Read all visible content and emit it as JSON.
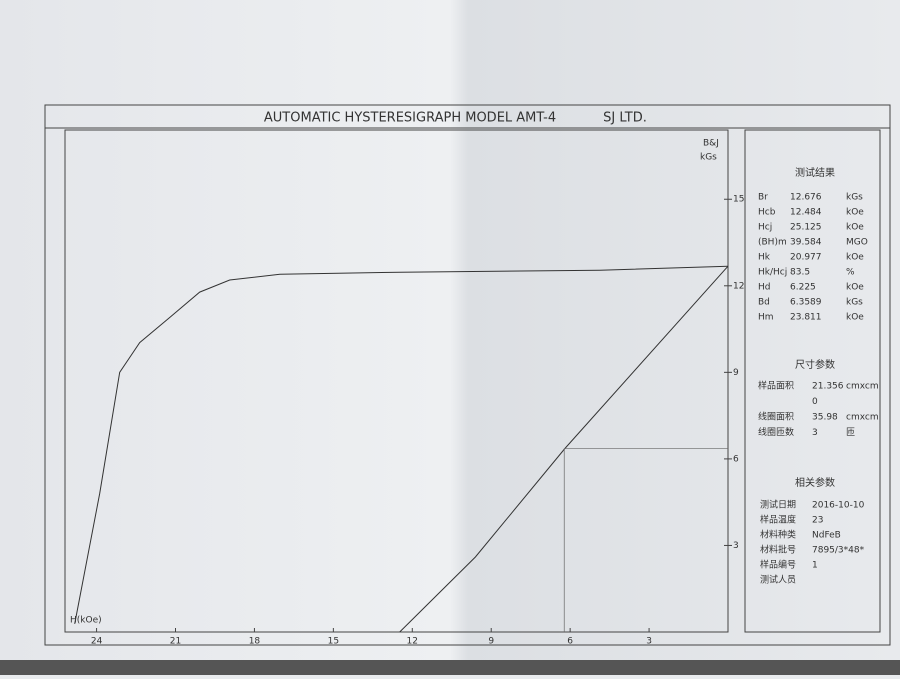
{
  "header": {
    "title": "AUTOMATIC HYSTERESIGRAPH MODEL AMT-4",
    "company": "SJ LTD."
  },
  "chart_data": {
    "type": "line",
    "x_label": "H(kOe)",
    "y_label": "B&J",
    "y_unit": "kGs",
    "xlim": [
      25.2,
      0
    ],
    "xticks": [
      24,
      21,
      18,
      15,
      12,
      9,
      6,
      3
    ],
    "ylim": [
      0,
      17.4
    ],
    "yticks": [
      15,
      12,
      9,
      6,
      3
    ],
    "series": [
      {
        "color": "#333333",
        "x": [
          24.83,
          23.88,
          23.12,
          22.36,
          21.22,
          20.08,
          18.94,
          17.03,
          12.47,
          4.87,
          0
        ],
        "values": [
          0.28,
          4.8,
          9.0,
          10.03,
          10.9,
          11.78,
          12.2,
          12.4,
          12.47,
          12.54,
          12.68
        ]
      },
      {
        "color": "#333333",
        "x": [
          0,
          6.2,
          9.6,
          12.48
        ],
        "values": [
          12.68,
          6.36,
          2.6,
          0
        ]
      }
    ]
  },
  "results": {
    "title": "测试结果",
    "rows": [
      [
        "Br",
        12.676,
        "kGs"
      ],
      [
        "Hcb",
        12.484,
        "kOe"
      ],
      [
        "Hcj",
        25.125,
        "kOe"
      ],
      [
        "(BH)m",
        39.584,
        "MGO"
      ],
      [
        "Hk",
        20.977,
        "kOe"
      ],
      [
        "Hk/Hcj",
        83.5,
        "%"
      ],
      [
        "Hd",
        6.225,
        "kOe"
      ],
      [
        "Bd",
        6.3589,
        "kGs"
      ],
      [
        "Hm",
        23.811,
        "kOe"
      ]
    ]
  },
  "size": {
    "title": "尺寸参数",
    "rows": [
      [
        "样品面积",
        21.356,
        "cmxcm"
      ],
      [
        0
      ],
      [
        "线圈面积",
        35.98,
        "cmxcm"
      ],
      [
        "线圈匝数",
        3,
        "匝"
      ]
    ]
  },
  "related": {
    "title": "相关参数",
    "rows": [
      [
        "测试日期",
        "2016-10-10"
      ],
      [
        "样品温度",
        23
      ],
      [
        "材料种类",
        "NdFeB"
      ],
      [
        "材料批号",
        "7895/3*48*"
      ],
      [
        "样品编号",
        1
      ],
      [
        "测试人员"
      ]
    ]
  }
}
